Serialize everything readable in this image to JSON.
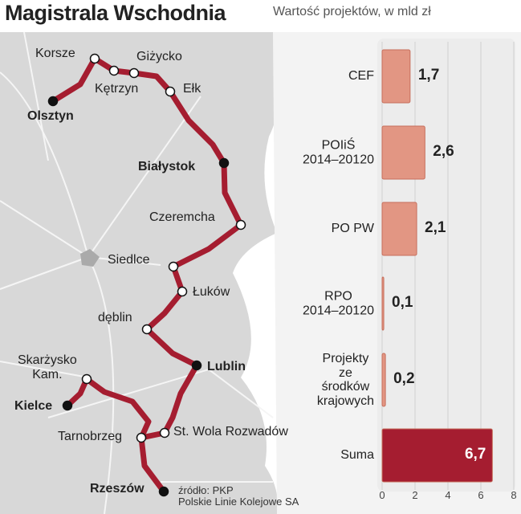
{
  "chart_data": {
    "type": "bar",
    "orientation": "horizontal",
    "title": "Magistrala Wschodnia",
    "subtitle": "Wartość projektów, w mld zł",
    "categories": [
      "CEF",
      "POIiŚ\n2014–20120",
      "PO PW",
      "RPO\n2014–20120",
      "Projekty\nze\nśrodków\nkrajowych",
      "Suma"
    ],
    "values": [
      1.7,
      2.6,
      2.1,
      0.1,
      0.2,
      6.7
    ],
    "value_labels": [
      "1,7",
      "2,6",
      "2,1",
      "0,1",
      "0,2",
      "6,7"
    ],
    "colors": [
      "#e29683",
      "#e29683",
      "#e29683",
      "#e29683",
      "#e29683",
      "#a51d30"
    ],
    "xlim": [
      0,
      8
    ],
    "xticks": [
      0,
      2,
      4,
      6,
      8
    ],
    "grid": true
  },
  "map": {
    "cities": [
      {
        "name": "Korsze",
        "bold": false
      },
      {
        "name": "Giżycko",
        "bold": false
      },
      {
        "name": "Kętrzyn",
        "bold": false
      },
      {
        "name": "Ełk",
        "bold": false
      },
      {
        "name": "Olsztyn",
        "bold": true
      },
      {
        "name": "Białystok",
        "bold": true
      },
      {
        "name": "Czeremcha",
        "bold": false
      },
      {
        "name": "Siedlce",
        "bold": false
      },
      {
        "name": "Łuków",
        "bold": false
      },
      {
        "name": "dęblin",
        "bold": false
      },
      {
        "name": "Lublin",
        "bold": true
      },
      {
        "name": "Skarżysko\nKam.",
        "bold": false
      },
      {
        "name": "Kielce",
        "bold": true
      },
      {
        "name": "Tarnobrzeg",
        "bold": false
      },
      {
        "name": "St. Wola Rozwadów",
        "bold": false
      },
      {
        "name": "Rzeszów",
        "bold": true
      }
    ],
    "source": "źródło: PKP\nPolskie Linie Kolejowe SA"
  }
}
